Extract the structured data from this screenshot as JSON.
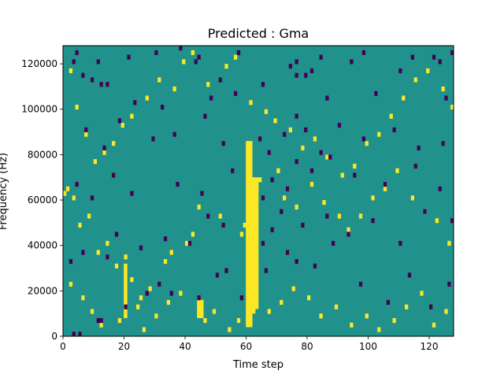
{
  "chart_data": {
    "type": "heatmap",
    "title": "Predicted : Gma",
    "xlabel": "Time step",
    "ylabel": "Frequency (Hz)",
    "xlim": [
      0,
      128
    ],
    "ylim": [
      0,
      128000
    ],
    "n_time_steps": 128,
    "n_freq_bins": 64,
    "freq_bin_hz": 2000,
    "x_ticks": [
      0,
      20,
      40,
      60,
      80,
      100,
      120
    ],
    "x_tick_labels": [
      "0",
      "20",
      "40",
      "60",
      "80",
      "100",
      "120"
    ],
    "y_ticks": [
      0,
      20000,
      40000,
      60000,
      80000,
      100000,
      120000
    ],
    "y_tick_labels": [
      "0",
      "20000",
      "40000",
      "60000",
      "80000",
      "100000",
      "120000"
    ],
    "colormap": "viridis",
    "colors": {
      "low": "#440154",
      "mid": "#21918c",
      "high": "#fde725"
    },
    "background_value": 0.5,
    "low_cells": [
      [
        3,
        0
      ],
      [
        5,
        0
      ],
      [
        11,
        3
      ],
      [
        12,
        3
      ],
      [
        20,
        6
      ],
      [
        27,
        9
      ],
      [
        31,
        11
      ],
      [
        35,
        9
      ],
      [
        44,
        8
      ],
      [
        50,
        13
      ],
      [
        53,
        14
      ],
      [
        58,
        8
      ],
      [
        66,
        14
      ],
      [
        73,
        18
      ],
      [
        76,
        16
      ],
      [
        82,
        15
      ],
      [
        88,
        20
      ],
      [
        97,
        11
      ],
      [
        106,
        7
      ],
      [
        113,
        13
      ],
      [
        120,
        6
      ],
      [
        126,
        11
      ],
      [
        2,
        16
      ],
      [
        6,
        18
      ],
      [
        14,
        17
      ],
      [
        17,
        22
      ],
      [
        25,
        19
      ],
      [
        33,
        21
      ],
      [
        41,
        20
      ],
      [
        47,
        26
      ],
      [
        52,
        24
      ],
      [
        65,
        20
      ],
      [
        68,
        23
      ],
      [
        71,
        27
      ],
      [
        78,
        24
      ],
      [
        86,
        26
      ],
      [
        93,
        22
      ],
      [
        101,
        25
      ],
      [
        110,
        20
      ],
      [
        118,
        27
      ],
      [
        127,
        25
      ],
      [
        4,
        33
      ],
      [
        9,
        30
      ],
      [
        16,
        35
      ],
      [
        22,
        31
      ],
      [
        37,
        33
      ],
      [
        45,
        31
      ],
      [
        55,
        36
      ],
      [
        65,
        30
      ],
      [
        68,
        34
      ],
      [
        73,
        32
      ],
      [
        76,
        38
      ],
      [
        81,
        36
      ],
      [
        87,
        39
      ],
      [
        95,
        35
      ],
      [
        105,
        33
      ],
      [
        115,
        37
      ],
      [
        123,
        32
      ],
      [
        7,
        45
      ],
      [
        13,
        41
      ],
      [
        18,
        47
      ],
      [
        29,
        43
      ],
      [
        36,
        44
      ],
      [
        46,
        48
      ],
      [
        52,
        42
      ],
      [
        64,
        43
      ],
      [
        67,
        40
      ],
      [
        72,
        44
      ],
      [
        76,
        48
      ],
      [
        79,
        45
      ],
      [
        84,
        40
      ],
      [
        90,
        46
      ],
      [
        98,
        43
      ],
      [
        108,
        45
      ],
      [
        116,
        41
      ],
      [
        124,
        42
      ],
      [
        3,
        60
      ],
      [
        6,
        57
      ],
      [
        9,
        56
      ],
      [
        12,
        55
      ],
      [
        14,
        55
      ],
      [
        23,
        51
      ],
      [
        32,
        50
      ],
      [
        43,
        60
      ],
      [
        48,
        52
      ],
      [
        51,
        56
      ],
      [
        56,
        53
      ],
      [
        65,
        55
      ],
      [
        74,
        59
      ],
      [
        76,
        57
      ],
      [
        79,
        57
      ],
      [
        81,
        58
      ],
      [
        86,
        52
      ],
      [
        94,
        60
      ],
      [
        102,
        53
      ],
      [
        110,
        58
      ],
      [
        121,
        61
      ],
      [
        125,
        52
      ],
      [
        4,
        62
      ],
      [
        11,
        60
      ],
      [
        21,
        61
      ],
      [
        30,
        62
      ],
      [
        38,
        63
      ],
      [
        44,
        61
      ],
      [
        57,
        62
      ],
      [
        76,
        60
      ],
      [
        84,
        61
      ],
      [
        98,
        62
      ],
      [
        114,
        61
      ],
      [
        123,
        60
      ],
      [
        127,
        62
      ]
    ],
    "high_cells": [
      [
        0,
        31
      ],
      [
        1,
        32
      ],
      [
        3,
        30
      ],
      [
        5,
        24
      ],
      [
        8,
        26
      ],
      [
        11,
        18
      ],
      [
        14,
        20
      ],
      [
        17,
        15
      ],
      [
        20,
        17
      ],
      [
        22,
        12
      ],
      [
        25,
        8
      ],
      [
        28,
        10
      ],
      [
        33,
        16
      ],
      [
        35,
        18
      ],
      [
        40,
        20
      ],
      [
        42,
        22
      ],
      [
        44,
        28
      ],
      [
        51,
        26
      ],
      [
        58,
        22
      ],
      [
        59,
        24
      ],
      [
        60,
        26
      ],
      [
        61,
        28
      ],
      [
        62,
        30
      ],
      [
        63,
        32
      ],
      [
        64,
        34
      ],
      [
        70,
        36
      ],
      [
        72,
        30
      ],
      [
        76,
        28
      ],
      [
        81,
        33
      ],
      [
        85,
        29
      ],
      [
        90,
        26
      ],
      [
        93,
        23
      ],
      [
        97,
        26
      ],
      [
        101,
        30
      ],
      [
        105,
        32
      ],
      [
        109,
        36
      ],
      [
        114,
        30
      ],
      [
        118,
        27
      ],
      [
        122,
        25
      ],
      [
        126,
        20
      ],
      [
        2,
        58
      ],
      [
        4,
        50
      ],
      [
        7,
        44
      ],
      [
        10,
        38
      ],
      [
        13,
        40
      ],
      [
        16,
        42
      ],
      [
        19,
        46
      ],
      [
        22,
        48
      ],
      [
        27,
        52
      ],
      [
        31,
        56
      ],
      [
        36,
        54
      ],
      [
        39,
        60
      ],
      [
        42,
        62
      ],
      [
        47,
        55
      ],
      [
        53,
        59
      ],
      [
        56,
        61
      ],
      [
        61,
        51
      ],
      [
        66,
        49
      ],
      [
        69,
        47
      ],
      [
        74,
        45
      ],
      [
        78,
        41
      ],
      [
        82,
        43
      ],
      [
        86,
        39
      ],
      [
        91,
        35
      ],
      [
        95,
        37
      ],
      [
        99,
        42
      ],
      [
        103,
        44
      ],
      [
        107,
        48
      ],
      [
        111,
        52
      ],
      [
        115,
        56
      ],
      [
        119,
        58
      ],
      [
        124,
        54
      ],
      [
        127,
        50
      ],
      [
        2,
        11
      ],
      [
        6,
        8
      ],
      [
        9,
        5
      ],
      [
        12,
        2
      ],
      [
        18,
        3
      ],
      [
        24,
        6
      ],
      [
        26,
        1
      ],
      [
        30,
        4
      ],
      [
        34,
        7
      ],
      [
        38,
        9
      ],
      [
        46,
        3
      ],
      [
        49,
        5
      ],
      [
        54,
        1
      ],
      [
        57,
        3
      ],
      [
        67,
        5
      ],
      [
        71,
        7
      ],
      [
        75,
        10
      ],
      [
        80,
        8
      ],
      [
        84,
        4
      ],
      [
        89,
        6
      ],
      [
        94,
        2
      ],
      [
        99,
        4
      ],
      [
        103,
        1
      ],
      [
        108,
        3
      ],
      [
        112,
        6
      ],
      [
        117,
        9
      ],
      [
        121,
        2
      ],
      [
        125,
        5
      ]
    ],
    "high_columns": [
      {
        "t": 60,
        "from_hz": 4000,
        "to_hz": 86000
      },
      {
        "t": 61,
        "from_hz": 4000,
        "to_hz": 86000
      },
      {
        "t": 62,
        "from_hz": 10000,
        "to_hz": 70000
      },
      {
        "t": 63,
        "from_hz": 12000,
        "to_hz": 70000
      },
      {
        "t": 20,
        "from_hz": 8000,
        "to_hz": 32000
      },
      {
        "t": 44,
        "from_hz": 8000,
        "to_hz": 16000
      },
      {
        "t": 45,
        "from_hz": 8000,
        "to_hz": 16000
      }
    ]
  }
}
